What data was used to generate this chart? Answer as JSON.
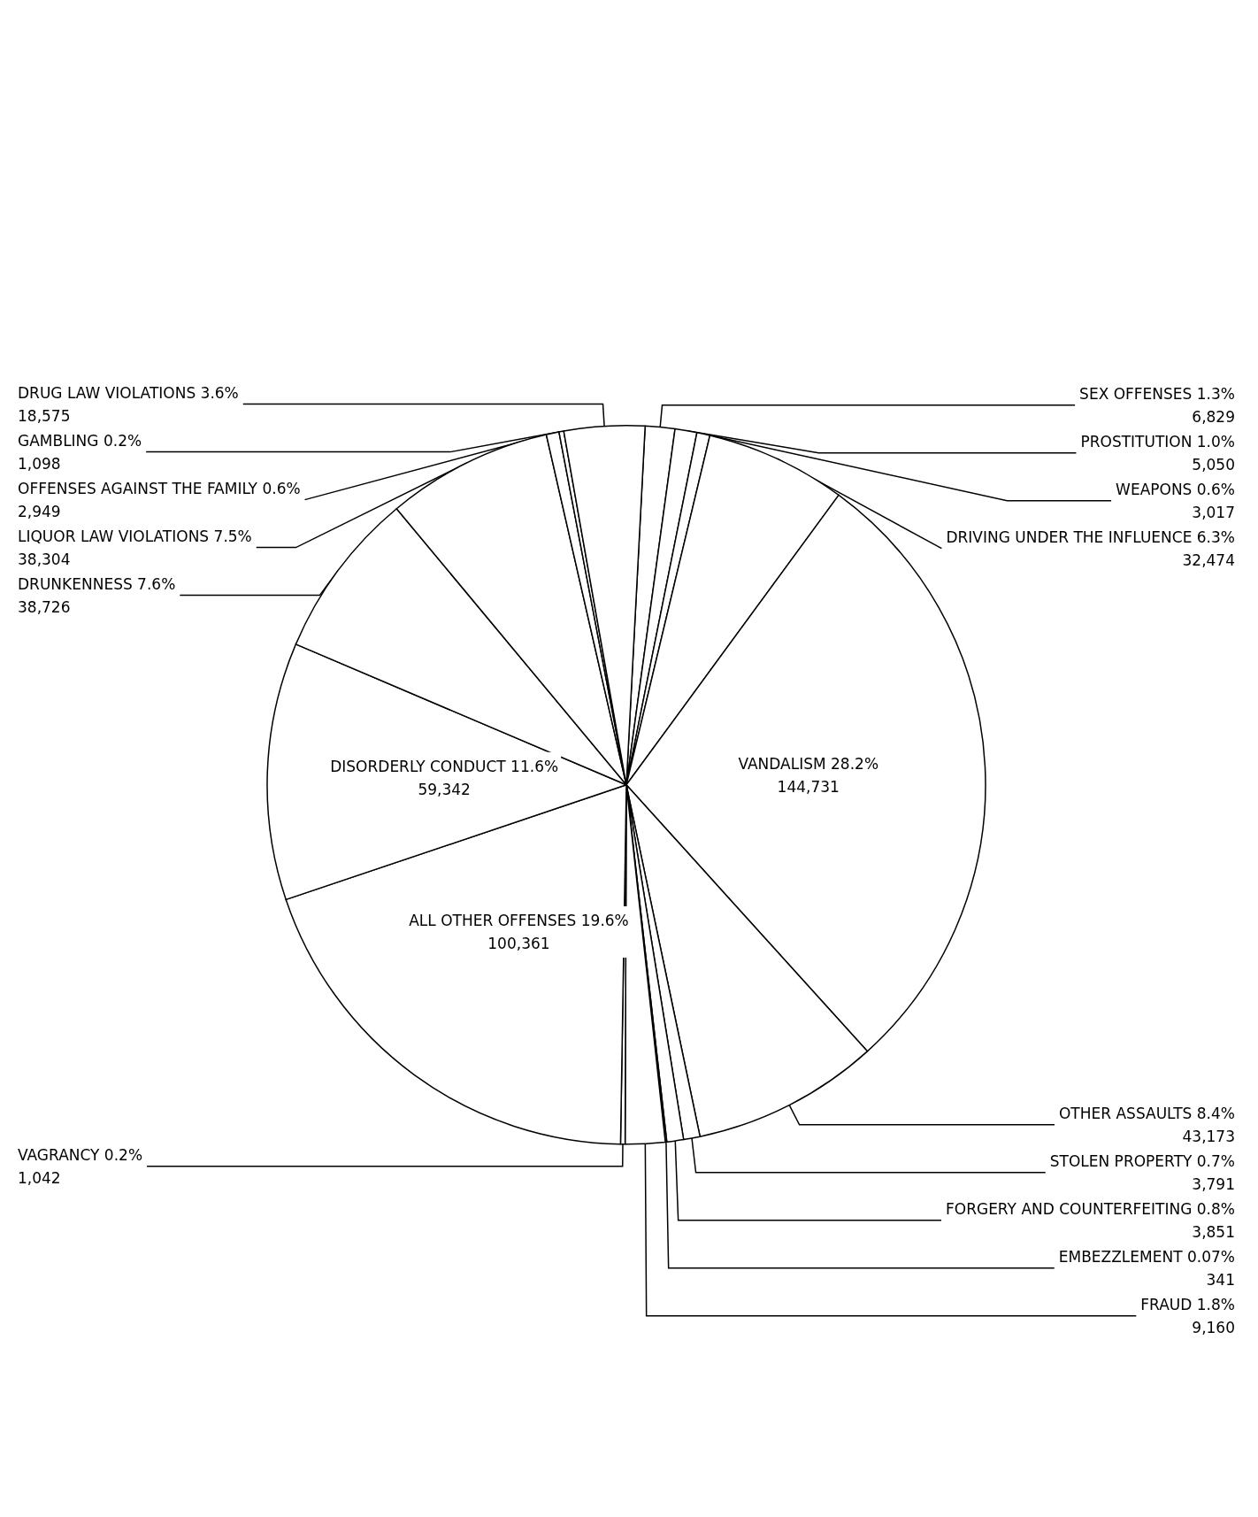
{
  "chart_data": {
    "type": "pie",
    "categories": [
      "SEX OFFENSES 1.3%",
      "PROSTITUTION 1.0%",
      "WEAPONS 0.6%",
      "DRIVING UNDER THE INFLUENCE 6.3%",
      "VANDALISM 28.2%",
      "OTHER ASSAULTS 8.4%",
      "STOLEN PROPERTY 0.7%",
      "FORGERY AND COUNTERFEITING 0.8%",
      "EMBEZZLEMENT 0.07%",
      "FRAUD 1.8%",
      "VAGRANCY 0.2%",
      "ALL OTHER OFFENSES 19.6%",
      "DISORDERLY CONDUCT 11.6%",
      "DRUNKENNESS 7.6%",
      "LIQUOR LAW VIOLATIONS 7.5%",
      "OFFENSES AGAINST THE FAMILY 0.6%",
      "GAMBLING 0.2%",
      "DRUG LAW VIOLATIONS 3.6%"
    ],
    "values": [
      6829,
      5050,
      3017,
      32474,
      144731,
      43173,
      3791,
      3851,
      341,
      9160,
      1042,
      100361,
      59342,
      38726,
      38304,
      2949,
      1098,
      18575
    ],
    "value_labels": [
      "6,829",
      "5,050",
      "3,017",
      "32,474",
      "144,731",
      "43,173",
      "3,791",
      "3,851",
      "341",
      "9,160",
      "1,042",
      "100,361",
      "59,342",
      "38,726",
      "38,304",
      "2,949",
      "1,098",
      "18,575"
    ],
    "colors": [
      "#ffffff",
      "#ffffff",
      "#ffffff",
      "#ffffff",
      "#ffffff",
      "#ffffff",
      "#ffffff",
      "#ffffff",
      "#ffffff",
      "#ffffff",
      "#ffffff",
      "#ffffff",
      "#ffffff",
      "#ffffff",
      "#ffffff",
      "#ffffff",
      "#ffffff",
      "#ffffff"
    ],
    "legend": false
  }
}
